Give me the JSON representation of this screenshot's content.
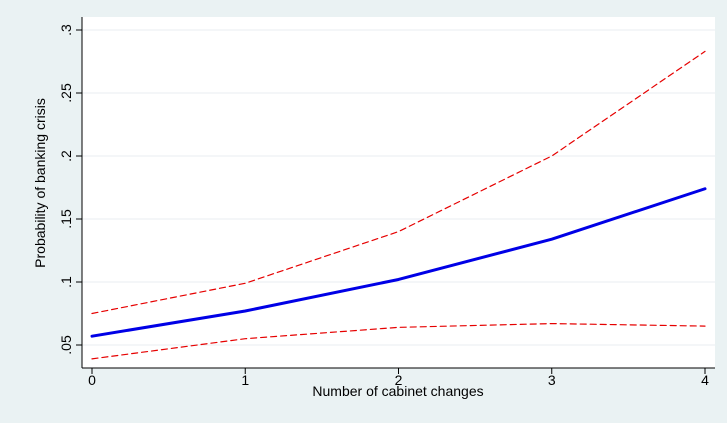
{
  "chart_data": {
    "type": "line",
    "title": "",
    "xlabel": "Number of cabinet changes",
    "ylabel": "Probability of banking crisis",
    "x": [
      0,
      1,
      2,
      3,
      4
    ],
    "xticks": [
      0,
      1,
      2,
      3,
      4
    ],
    "xtick_labels": [
      "0",
      "1",
      "2",
      "3",
      "4"
    ],
    "yticks": [
      0.05,
      0.1,
      0.15,
      0.2,
      0.25,
      0.3
    ],
    "ytick_labels": [
      ".05",
      ".1",
      ".15",
      ".2",
      ".25",
      ".3"
    ],
    "xlim": [
      0,
      4
    ],
    "ylim": [
      0.05,
      0.3
    ],
    "grid": true,
    "series": [
      {
        "key": "estimate",
        "values": [
          0.057,
          0.077,
          0.102,
          0.134,
          0.174
        ],
        "color": "#0000e6",
        "style": "solid"
      },
      {
        "key": "upper",
        "values": [
          0.075,
          0.099,
          0.14,
          0.2,
          0.283
        ],
        "color": "#e60000",
        "style": "dashed"
      },
      {
        "key": "lower",
        "values": [
          0.039,
          0.055,
          0.064,
          0.067,
          0.065
        ],
        "color": "#e60000",
        "style": "dashed"
      }
    ]
  }
}
